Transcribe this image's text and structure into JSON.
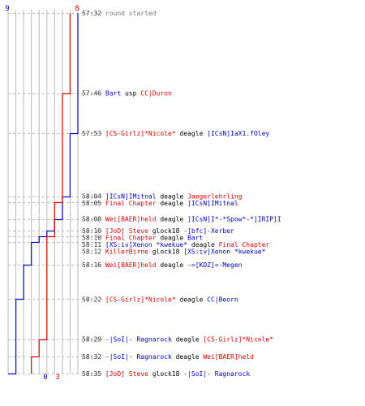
{
  "chart_data": {
    "type": "line",
    "title": "",
    "xlabel": "",
    "ylabel": "",
    "x_axis": {
      "min": 0,
      "max": 9,
      "gridlines": 9
    },
    "colors": {
      "blue_team": "#0000cc",
      "red_team": "#dd0000",
      "text_default": "#000000",
      "text_gray": "#777777",
      "grid": "#b8b8b8",
      "dash": "#bbbbbb"
    },
    "top_labels": {
      "left": "9",
      "right": "8"
    },
    "bottom_labels": {
      "left": "0",
      "right": "3"
    },
    "series": [
      {
        "color": "#0000cc",
        "points": [
          {
            "t": "57:32",
            "v": 9
          },
          {
            "t": "57:53",
            "v": 9
          },
          {
            "t": "57:53",
            "v": 8
          },
          {
            "t": "58:04",
            "v": 8
          },
          {
            "t": "58:04",
            "v": 7
          },
          {
            "t": "58:08",
            "v": 7
          },
          {
            "t": "58:08",
            "v": 6
          },
          {
            "t": "58:10",
            "v": 6
          },
          {
            "t": "58:10",
            "v": 5
          },
          {
            "t": "58:11",
            "v": 5
          },
          {
            "t": "58:11",
            "v": 4
          },
          {
            "t": "58:12",
            "v": 4
          },
          {
            "t": "58:12",
            "v": 3
          },
          {
            "t": "58:16",
            "v": 3
          },
          {
            "t": "58:16",
            "v": 2
          },
          {
            "t": "58:22",
            "v": 2
          },
          {
            "t": "58:22",
            "v": 1
          },
          {
            "t": "58:35",
            "v": 1
          },
          {
            "t": "58:35",
            "v": 0
          }
        ]
      },
      {
        "color": "#dd0000",
        "points": [
          {
            "t": "57:32",
            "v": 8
          },
          {
            "t": "57:46",
            "v": 8
          },
          {
            "t": "57:46",
            "v": 7
          },
          {
            "t": "58:05",
            "v": 7
          },
          {
            "t": "58:05",
            "v": 6
          },
          {
            "t": "58:11",
            "v": 6
          },
          {
            "t": "58:11",
            "v": 5
          },
          {
            "t": "58:29",
            "v": 5
          },
          {
            "t": "58:29",
            "v": 4
          },
          {
            "t": "58:32",
            "v": 4
          },
          {
            "t": "58:32",
            "v": 3
          },
          {
            "t": "58:35",
            "v": 3
          }
        ]
      }
    ],
    "events": [
      {
        "time": "57:32",
        "parts": [
          {
            "text": "round started",
            "color": "#777777"
          }
        ]
      },
      {
        "time": "57:46",
        "parts": [
          {
            "text": "Bart",
            "color": "#0000cc"
          },
          {
            "text": " usp ",
            "color": "#000000"
          },
          {
            "text": "CC|Duron",
            "color": "#dd0000"
          }
        ]
      },
      {
        "time": "57:53",
        "parts": [
          {
            "text": "[CS-Girlz]*Nicole*",
            "color": "#dd0000"
          },
          {
            "text": " deagle ",
            "color": "#000000"
          },
          {
            "text": "]ICsN]IaX1.fOley",
            "color": "#0000cc"
          }
        ]
      },
      {
        "time": "58:04",
        "parts": [
          {
            "text": "]ICsN]IMitnal",
            "color": "#0000cc"
          },
          {
            "text": " deagle ",
            "color": "#000000"
          },
          {
            "text": "Jaegerlehrling",
            "color": "#dd0000"
          }
        ]
      },
      {
        "time": "58:05",
        "parts": [
          {
            "text": "Final Chapter",
            "color": "#dd0000"
          },
          {
            "text": " deagle ",
            "color": "#000000"
          },
          {
            "text": "]ICsN]IMitnal",
            "color": "#0000cc"
          }
        ]
      },
      {
        "time": "58:08",
        "parts": [
          {
            "text": "Wei[BAER]held",
            "color": "#dd0000"
          },
          {
            "text": " deagle ",
            "color": "#000000"
          },
          {
            "text": "]ICsN]I*-*Spow*-*]IRIP]I",
            "color": "#0000cc"
          }
        ]
      },
      {
        "time": "58:10",
        "parts": [
          {
            "text": "[JoD] Steve",
            "color": "#dd0000"
          },
          {
            "text": " glock18 ",
            "color": "#000000"
          },
          {
            "text": "-[bfc]-Xerber",
            "color": "#0000cc"
          }
        ]
      },
      {
        "time": "58:10",
        "parts": [
          {
            "text": "Final Chapter",
            "color": "#dd0000"
          },
          {
            "text": " deagle ",
            "color": "#000000"
          },
          {
            "text": "Bart",
            "color": "#0000cc"
          }
        ]
      },
      {
        "time": "58:11",
        "parts": [
          {
            "text": "[XS:iv]Xenon *kwekue*",
            "color": "#0000cc"
          },
          {
            "text": " deagle ",
            "color": "#000000"
          },
          {
            "text": "Final Chapter",
            "color": "#dd0000"
          }
        ]
      },
      {
        "time": "58:12",
        "parts": [
          {
            "text": "KillerBirne",
            "color": "#dd0000"
          },
          {
            "text": " glock18 ",
            "color": "#000000"
          },
          {
            "text": "[XS:iv]Xenon *kwekue*",
            "color": "#0000cc"
          }
        ]
      },
      {
        "time": "58:16",
        "parts": [
          {
            "text": "Wei[BAER]held",
            "color": "#dd0000"
          },
          {
            "text": " deagle ",
            "color": "#000000"
          },
          {
            "text": "-=[KDZ]=-Megen",
            "color": "#0000cc"
          }
        ]
      },
      {
        "time": "58:22",
        "parts": [
          {
            "text": "[CS-Girlz]*Nicole*",
            "color": "#dd0000"
          },
          {
            "text": " deagle ",
            "color": "#000000"
          },
          {
            "text": "CC|Beorn",
            "color": "#0000cc"
          }
        ]
      },
      {
        "time": "58:29",
        "parts": [
          {
            "text": "-|SoI|- Ragnarock",
            "color": "#0000cc"
          },
          {
            "text": " deagle ",
            "color": "#000000"
          },
          {
            "text": "[CS-Girlz]*Nicole*",
            "color": "#dd0000"
          }
        ]
      },
      {
        "time": "58:32",
        "parts": [
          {
            "text": "-|SoI|- Ragnarock",
            "color": "#0000cc"
          },
          {
            "text": " deagle ",
            "color": "#000000"
          },
          {
            "text": "Wei[BAER]held",
            "color": "#dd0000"
          }
        ]
      },
      {
        "time": "58:35",
        "parts": [
          {
            "text": "[JoD] Steve",
            "color": "#dd0000"
          },
          {
            "text": " glock18 ",
            "color": "#000000"
          },
          {
            "text": "-|SoI|- Ragnarock",
            "color": "#0000cc"
          }
        ]
      }
    ]
  }
}
